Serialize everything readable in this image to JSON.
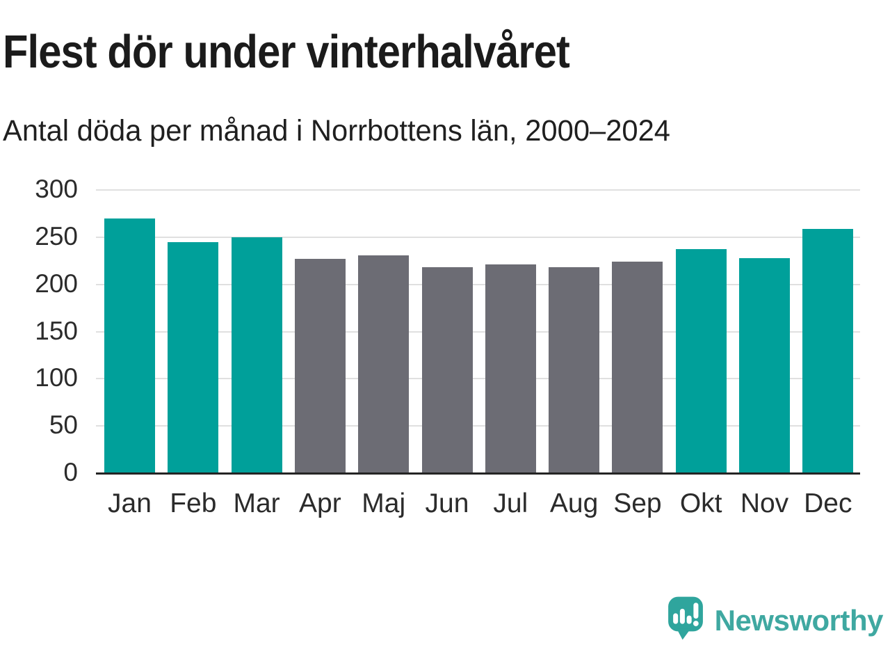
{
  "header": {
    "title": "Flest dör under vinterhalvåret",
    "subtitle": "Antal döda per månad i Norrbottens län, 2000–2024"
  },
  "chart_data": {
    "type": "bar",
    "title": "Flest dör under vinterhalvåret",
    "subtitle": "Antal döda per månad i Norrbottens län, 2000–2024",
    "categories": [
      "Jan",
      "Feb",
      "Mar",
      "Apr",
      "Maj",
      "Jun",
      "Jul",
      "Aug",
      "Sep",
      "Okt",
      "Nov",
      "Dec"
    ],
    "values": [
      270,
      245,
      250,
      227,
      231,
      218,
      221,
      218,
      224,
      237,
      228,
      259
    ],
    "bar_colors": [
      "teal",
      "teal",
      "teal",
      "gray",
      "gray",
      "gray",
      "gray",
      "gray",
      "gray",
      "teal",
      "teal",
      "teal"
    ],
    "colors": {
      "teal": "#00a09a",
      "gray": "#6c6c74"
    },
    "xlabel": "",
    "ylabel": "",
    "ylim": [
      0,
      300
    ],
    "yticks": [
      0,
      50,
      100,
      150,
      200,
      250,
      300
    ],
    "grid": "horizontal",
    "legend": "none"
  },
  "footer": {
    "brand": "Newsworthy",
    "brand_color": "#3fa8a1",
    "logo_icon_color": "#2fa59d",
    "logo_icon": "bar-chart-speech-bubble-icon"
  }
}
